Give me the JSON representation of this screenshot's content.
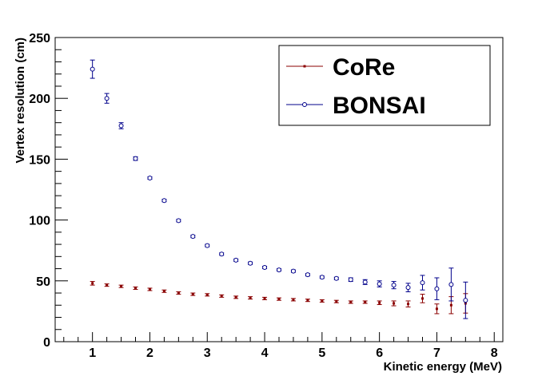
{
  "chart_data": {
    "type": "scatter",
    "title": "",
    "xlabel": "Kinetic energy (MeV)",
    "ylabel": "Vertex resolution (cm)",
    "xlim": [
      0.35,
      8.15
    ],
    "ylim": [
      0,
      250
    ],
    "x_ticks": [
      1,
      2,
      3,
      4,
      5,
      6,
      7,
      8
    ],
    "y_ticks": [
      0,
      50,
      100,
      150,
      200,
      250
    ],
    "grid": false,
    "legend_position": "top-right",
    "series": [
      {
        "name": "CoRe",
        "color": "#8b0000",
        "marker": "square",
        "x": [
          1.0,
          1.25,
          1.5,
          1.75,
          2.0,
          2.25,
          2.5,
          2.75,
          3.0,
          3.25,
          3.5,
          3.75,
          4.0,
          4.25,
          4.5,
          4.75,
          5.0,
          5.25,
          5.5,
          5.75,
          6.0,
          6.25,
          6.5,
          6.75,
          7.0,
          7.25,
          7.5
        ],
        "y": [
          48,
          46.5,
          45.5,
          44,
          43,
          41.5,
          40,
          39,
          38.5,
          37.5,
          36.5,
          36,
          35.5,
          35,
          34.5,
          34,
          33.5,
          33,
          32.5,
          32.5,
          32,
          31.5,
          31,
          35.5,
          27,
          30,
          31.5
        ],
        "error": [
          1.5,
          1,
          1,
          1,
          1,
          1,
          1,
          1,
          1,
          1,
          1,
          1,
          1,
          1,
          1,
          1,
          1,
          1,
          1,
          1,
          1.5,
          2,
          2.5,
          3.5,
          4,
          7,
          8
        ]
      },
      {
        "name": "BONSAI",
        "color": "#00008b",
        "marker": "open-circle",
        "x": [
          1.0,
          1.25,
          1.5,
          1.75,
          2.0,
          2.25,
          2.5,
          2.75,
          3.0,
          3.25,
          3.5,
          3.75,
          4.0,
          4.25,
          4.5,
          4.75,
          5.0,
          5.25,
          5.5,
          5.75,
          6.0,
          6.25,
          6.5,
          6.75,
          7.0,
          7.25,
          7.5
        ],
        "y": [
          224,
          200,
          177.5,
          150.5,
          134.5,
          116,
          99.5,
          86.5,
          79,
          72,
          67,
          64.5,
          61,
          59,
          58,
          55,
          53,
          52,
          51,
          49,
          47.5,
          46.5,
          44.5,
          48.5,
          43.5,
          47,
          34
        ],
        "error": [
          7.5,
          4,
          2.5,
          1.5,
          1,
          1,
          1,
          1,
          1,
          1,
          1,
          1,
          1,
          1,
          1,
          1,
          1,
          1,
          1.5,
          2,
          2.5,
          3,
          3.5,
          6,
          9,
          13.5,
          15
        ]
      }
    ]
  }
}
